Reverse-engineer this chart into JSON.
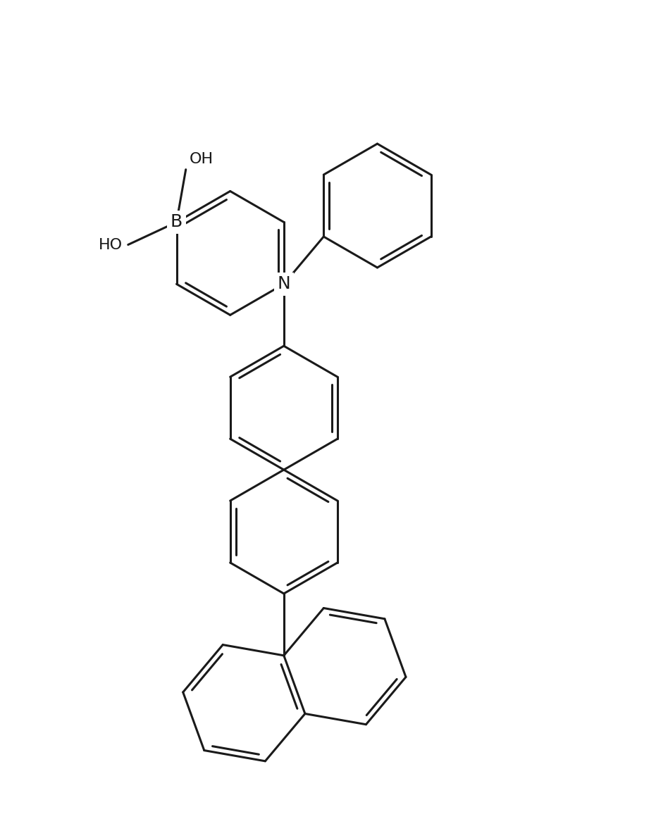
{
  "bg_color": "#ffffff",
  "line_color": "#1a1a1a",
  "line_width": 2.2,
  "dbo": 0.085,
  "font_size": 16,
  "canvas_xlim": [
    0,
    10
  ],
  "canvas_ylim": [
    0,
    12
  ],
  "figsize": [
    9.31,
    11.63
  ],
  "dpi": 100
}
